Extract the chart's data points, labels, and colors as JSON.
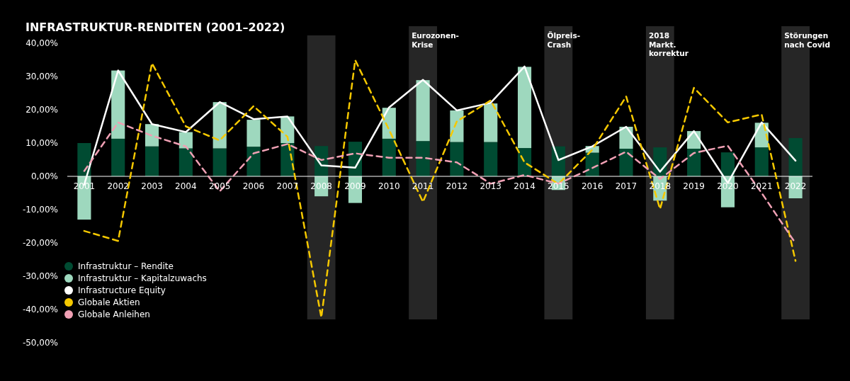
{
  "chart_data": {
    "type": "bar",
    "stacked": true,
    "title": "INFRASTRUKTUR-RENDITEN (2001–2022)",
    "categories": [
      "2001",
      "2002",
      "2003",
      "2004",
      "2005",
      "2006",
      "2007",
      "2008",
      "2009",
      "2010",
      "2011",
      "2012",
      "2013",
      "2014",
      "2015",
      "2016",
      "2017",
      "2018",
      "2019",
      "2020",
      "2021",
      "2022"
    ],
    "series": [
      {
        "name": "Infrastruktur – Rendite",
        "color": "#004b32",
        "values": [
          10.0,
          11.3,
          9.0,
          8.4,
          8.4,
          8.9,
          10.0,
          9.1,
          10.4,
          11.3,
          10.6,
          10.3,
          10.3,
          8.5,
          9.0,
          7.1,
          8.3,
          8.7,
          8.3,
          7.2,
          8.7,
          11.5
        ]
      },
      {
        "name": "Infrastruktur – Kapitalzuwachs",
        "color": "#9ed8be",
        "values": [
          -13.0,
          20.5,
          6.7,
          4.9,
          13.9,
          8.1,
          8.0,
          -6.0,
          -8.0,
          9.3,
          18.3,
          9.5,
          11.6,
          24.4,
          -4.1,
          2.0,
          6.6,
          -7.3,
          5.3,
          -9.3,
          7.4,
          -6.6
        ]
      },
      {
        "name": "Infrastructure Equity",
        "type": "line",
        "color": "#ffffff",
        "line_style": "solid",
        "values": [
          -2.5,
          31.8,
          15.7,
          13.3,
          22.3,
          17.2,
          18.0,
          3.3,
          2.6,
          20.7,
          29.0,
          19.8,
          22.1,
          33.0,
          4.9,
          9.0,
          14.9,
          1.4,
          13.6,
          -2.0,
          16.2,
          4.7
        ]
      },
      {
        "name": "Globale Aktien",
        "type": "line",
        "color": "#f5c800",
        "line_style": "dashed",
        "values": [
          -16.4,
          -19.4,
          34.0,
          15.0,
          10.8,
          21.1,
          11.9,
          -42.4,
          34.9,
          14.0,
          -7.7,
          16.5,
          22.8,
          4.2,
          -2.3,
          8.0,
          24.0,
          -9.8,
          26.6,
          16.2,
          18.6,
          -25.4
        ]
      },
      {
        "name": "Globale Anleihen",
        "type": "line",
        "color": "#f0a0b4",
        "line_style": "dashed",
        "values": [
          1.6,
          16.2,
          12.2,
          9.0,
          -4.5,
          6.9,
          9.7,
          4.9,
          6.9,
          5.6,
          5.6,
          4.2,
          -2.2,
          0.4,
          -2.2,
          2.5,
          7.4,
          -0.8,
          7.0,
          9.2,
          -5.0,
          -20.1
        ]
      }
    ],
    "ylim": [
      -50,
      40
    ],
    "yticks": [
      {
        "value": -50,
        "label": "-50,00%"
      },
      {
        "value": -40,
        "label": "-40,00%"
      },
      {
        "value": -30,
        "label": "-30,00%"
      },
      {
        "value": -20,
        "label": "-20,00%"
      },
      {
        "value": -10,
        "label": "-10,00%"
      },
      {
        "value": 0,
        "label": "0,00%"
      },
      {
        "value": 10,
        "label": "10,00%"
      },
      {
        "value": 20,
        "label": "20,00%"
      },
      {
        "value": 30,
        "label": "30,00%"
      },
      {
        "value": 40,
        "label": "40,00%"
      }
    ],
    "bands": [
      {
        "axis": "x",
        "from": "2008",
        "to": "2008",
        "color": "#262626"
      },
      {
        "axis": "x",
        "from": "2011",
        "to": "2011",
        "label": "Eurozonen-\nKrise",
        "color": "#262626"
      },
      {
        "axis": "x",
        "from": "2015",
        "to": "2015",
        "label": "Ölpreis-\nCrash",
        "color": "#262626"
      },
      {
        "axis": "x",
        "from": "2018",
        "to": "2018",
        "label": "2018\nMarkt.\nkorrektur",
        "color": "#262626"
      },
      {
        "axis": "x",
        "from": "2022",
        "to": "2022",
        "label": "Störungen\nnach Covid",
        "color": "#262626"
      }
    ],
    "grid": false,
    "legend": "bottom left"
  }
}
